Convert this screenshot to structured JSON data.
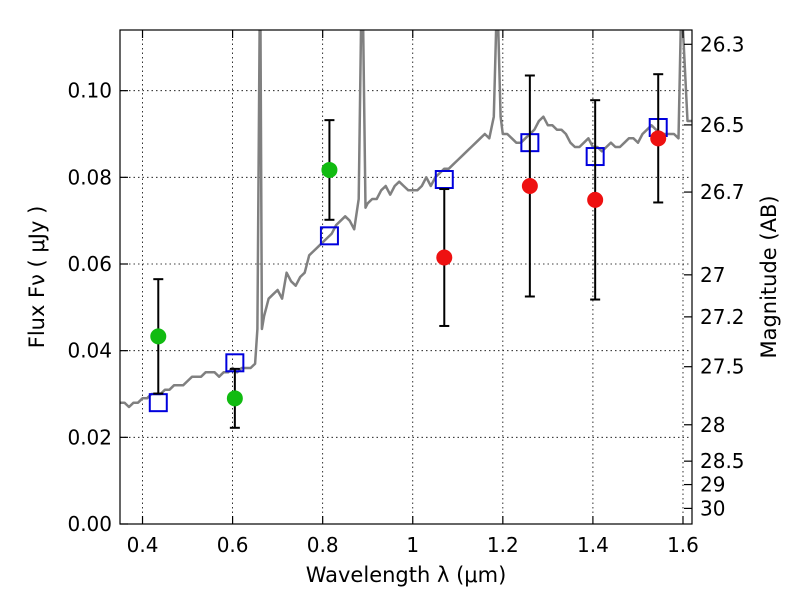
{
  "chart_data": {
    "type": "scatter",
    "xlabel": "Wavelength  λ (μm)",
    "ylabel": "Flux  Fν  ( μJy )",
    "ylabel_right": "Magnitude (AB)",
    "xlim": [
      0.35,
      1.62
    ],
    "ylim": [
      0.0,
      0.114
    ],
    "grid": true,
    "x_ticks": [
      0.4,
      0.6,
      0.8,
      1.0,
      1.2,
      1.4,
      1.6
    ],
    "x_tick_labels": [
      "0.4",
      "0.6",
      "0.8",
      "1",
      "1.2",
      "1.4",
      "1.6"
    ],
    "y_ticks": [
      0.0,
      0.02,
      0.04,
      0.06,
      0.08,
      0.1
    ],
    "y_tick_labels": [
      "0.00",
      "0.02",
      "0.04",
      "0.06",
      "0.08",
      "0.10"
    ],
    "right_ticks": [
      {
        "flux": 0.1107,
        "label": "26.3"
      },
      {
        "flux": 0.0921,
        "label": "26.5"
      },
      {
        "flux": 0.0766,
        "label": "26.7"
      },
      {
        "flux": 0.0575,
        "label": "27"
      },
      {
        "flux": 0.0478,
        "label": "27.2"
      },
      {
        "flux": 0.0363,
        "label": "27.5"
      },
      {
        "flux": 0.0229,
        "label": "28"
      },
      {
        "flux": 0.0145,
        "label": "28.5"
      },
      {
        "flux": 0.0091,
        "label": "29"
      },
      {
        "flux": 0.0036,
        "label": "30"
      }
    ],
    "series": [
      {
        "kind": "line",
        "color": "#808080",
        "x": [
          0.35,
          0.36,
          0.37,
          0.38,
          0.39,
          0.4,
          0.41,
          0.42,
          0.43,
          0.44,
          0.45,
          0.46,
          0.47,
          0.48,
          0.49,
          0.5,
          0.51,
          0.52,
          0.53,
          0.54,
          0.55,
          0.56,
          0.57,
          0.58,
          0.59,
          0.6,
          0.61,
          0.62,
          0.63,
          0.64,
          0.65,
          0.655,
          0.66,
          0.662,
          0.665,
          0.67,
          0.675,
          0.68,
          0.69,
          0.7,
          0.71,
          0.72,
          0.73,
          0.74,
          0.75,
          0.76,
          0.77,
          0.78,
          0.79,
          0.8,
          0.81,
          0.82,
          0.83,
          0.84,
          0.85,
          0.86,
          0.87,
          0.88,
          0.885,
          0.89,
          0.895,
          0.9,
          0.91,
          0.92,
          0.93,
          0.94,
          0.95,
          0.96,
          0.97,
          0.98,
          0.99,
          1.0,
          1.01,
          1.02,
          1.03,
          1.04,
          1.05,
          1.06,
          1.07,
          1.08,
          1.09,
          1.1,
          1.11,
          1.12,
          1.13,
          1.14,
          1.15,
          1.16,
          1.17,
          1.18,
          1.185,
          1.19,
          1.195,
          1.2,
          1.21,
          1.22,
          1.23,
          1.24,
          1.25,
          1.26,
          1.27,
          1.28,
          1.29,
          1.3,
          1.31,
          1.32,
          1.33,
          1.34,
          1.35,
          1.36,
          1.37,
          1.38,
          1.39,
          1.4,
          1.41,
          1.42,
          1.43,
          1.44,
          1.45,
          1.46,
          1.47,
          1.48,
          1.49,
          1.5,
          1.51,
          1.52,
          1.53,
          1.54,
          1.55,
          1.56,
          1.57,
          1.58,
          1.59,
          1.595,
          1.6,
          1.61,
          1.62
        ],
        "y": [
          0.028,
          0.028,
          0.027,
          0.028,
          0.028,
          0.029,
          0.029,
          0.03,
          0.03,
          0.03,
          0.031,
          0.031,
          0.032,
          0.032,
          0.032,
          0.033,
          0.034,
          0.034,
          0.034,
          0.035,
          0.035,
          0.035,
          0.034,
          0.035,
          0.035,
          0.036,
          0.035,
          0.036,
          0.036,
          0.036,
          0.037,
          0.045,
          0.114,
          0.114,
          0.045,
          0.048,
          0.05,
          0.052,
          0.053,
          0.054,
          0.052,
          0.058,
          0.056,
          0.055,
          0.057,
          0.058,
          0.062,
          0.063,
          0.064,
          0.065,
          0.066,
          0.067,
          0.069,
          0.07,
          0.071,
          0.07,
          0.068,
          0.075,
          0.114,
          0.114,
          0.073,
          0.074,
          0.075,
          0.075,
          0.077,
          0.078,
          0.076,
          0.078,
          0.079,
          0.078,
          0.077,
          0.077,
          0.077,
          0.078,
          0.08,
          0.078,
          0.08,
          0.081,
          0.082,
          0.082,
          0.083,
          0.084,
          0.085,
          0.086,
          0.087,
          0.088,
          0.089,
          0.09,
          0.089,
          0.094,
          0.114,
          0.114,
          0.094,
          0.09,
          0.09,
          0.089,
          0.088,
          0.088,
          0.089,
          0.09,
          0.091,
          0.093,
          0.094,
          0.092,
          0.092,
          0.091,
          0.091,
          0.09,
          0.088,
          0.087,
          0.087,
          0.088,
          0.089,
          0.087,
          0.087,
          0.086,
          0.087,
          0.088,
          0.087,
          0.087,
          0.088,
          0.089,
          0.089,
          0.088,
          0.09,
          0.091,
          0.092,
          0.091,
          0.09,
          0.09,
          0.09,
          0.09,
          0.089,
          0.114,
          0.114,
          0.093,
          0.093
        ]
      },
      {
        "kind": "markers",
        "marker": "open-square",
        "color": "#0000dd",
        "x": [
          0.435,
          0.605,
          0.815,
          1.07,
          1.26,
          1.405,
          1.545
        ],
        "y": [
          0.028,
          0.0372,
          0.0665,
          0.0795,
          0.088,
          0.0848,
          0.0915
        ]
      },
      {
        "kind": "markers",
        "marker": "filled-circle",
        "color": "#11bb11",
        "x": [
          0.435,
          0.605,
          0.815
        ],
        "y": [
          0.0433,
          0.029,
          0.0817
        ],
        "yerr": [
          0.0132,
          0.0068,
          0.0115
        ]
      },
      {
        "kind": "markers",
        "marker": "filled-circle",
        "color": "#ee1111",
        "x": [
          1.07,
          1.26,
          1.405,
          1.545
        ],
        "y": [
          0.0615,
          0.078,
          0.0748,
          0.089
        ],
        "yerr": [
          0.0158,
          0.0255,
          0.023,
          0.0148
        ]
      }
    ]
  }
}
